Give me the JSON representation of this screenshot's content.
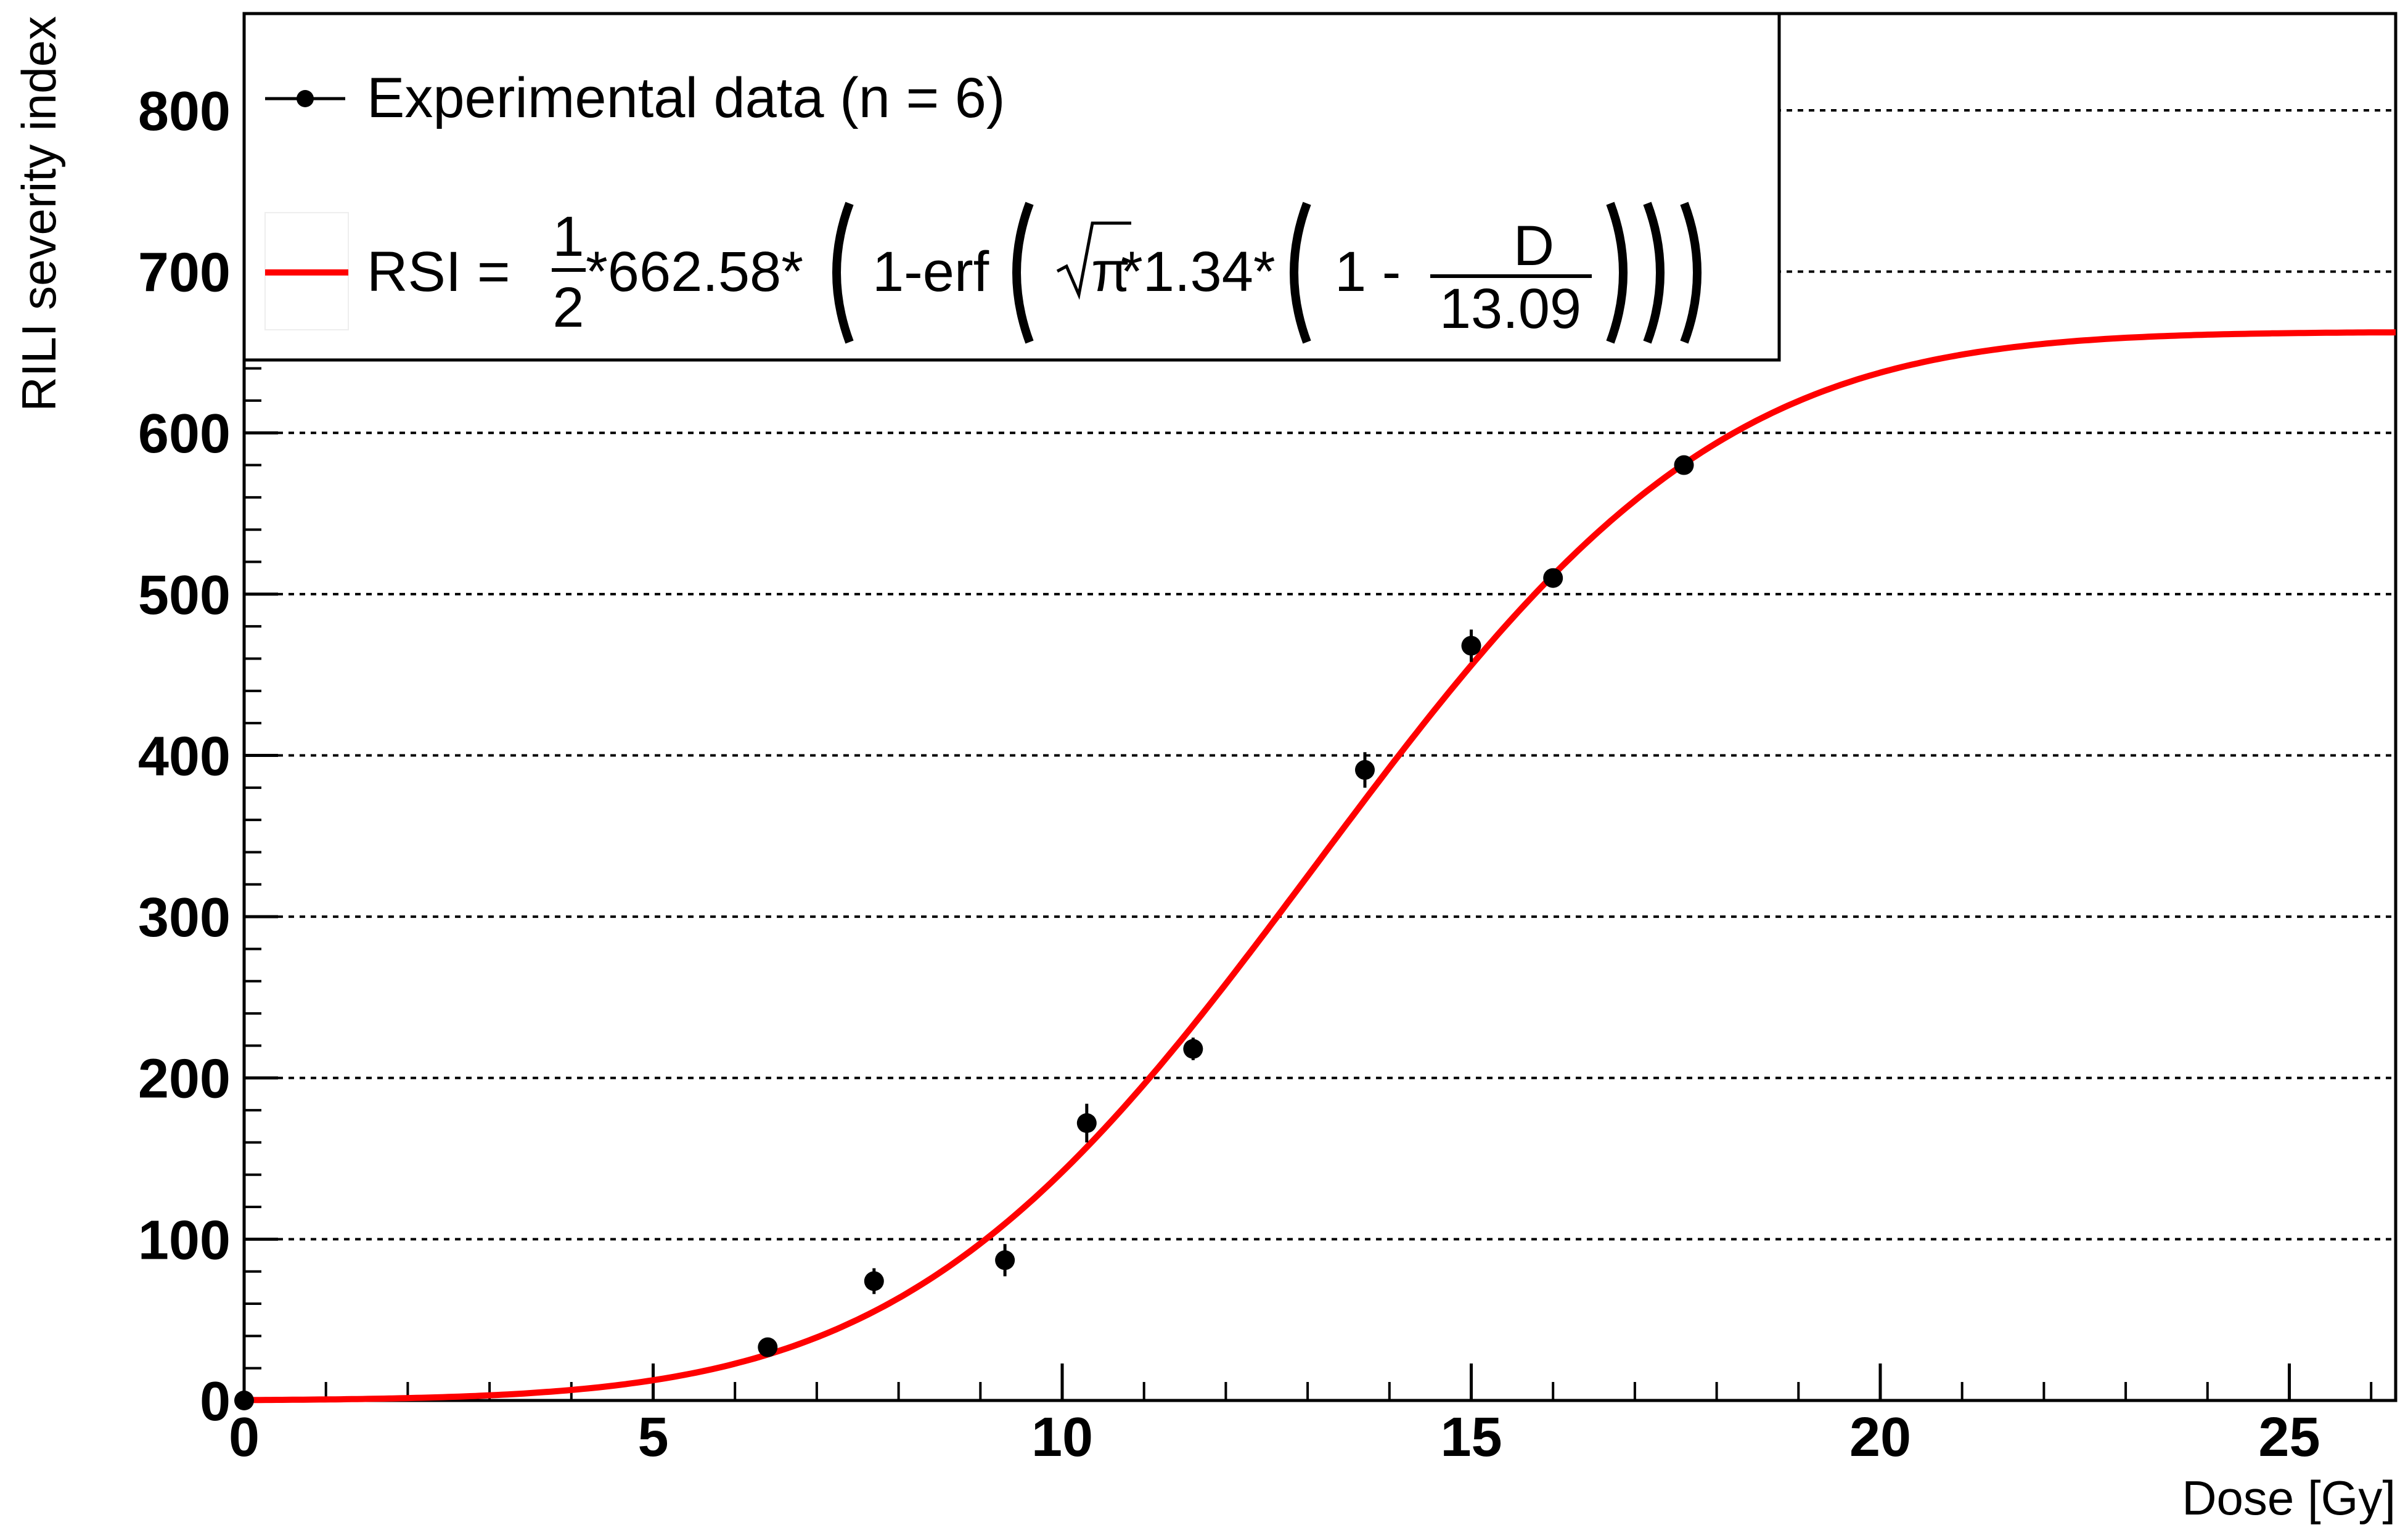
{
  "chart_data": {
    "type": "scatter",
    "title": "",
    "xlabel": "Dose [Gy]",
    "ylabel": "RILI severity index",
    "xlim": [
      0,
      26.3
    ],
    "ylim": [
      0,
      860
    ],
    "x_ticks": [
      "0",
      "5",
      "10",
      "15",
      "20",
      "25"
    ],
    "y_ticks": [
      "0",
      "100",
      "200",
      "300",
      "400",
      "500",
      "600",
      "700",
      "800"
    ],
    "y_grid": "dotted",
    "legend_position": "top-left",
    "series": [
      {
        "name": "Experimental data (n = 6)",
        "kind": "points-with-errors",
        "color": "#000000",
        "points": [
          {
            "x": 0,
            "y": 0,
            "err": 0
          },
          {
            "x": 6.4,
            "y": 33,
            "err": 3
          },
          {
            "x": 7.7,
            "y": 74,
            "err": 8
          },
          {
            "x": 9.3,
            "y": 87,
            "err": 10
          },
          {
            "x": 10.3,
            "y": 172,
            "err": 12
          },
          {
            "x": 11.6,
            "y": 218,
            "err": 7
          },
          {
            "x": 13.7,
            "y": 391,
            "err": 11
          },
          {
            "x": 15.0,
            "y": 468,
            "err": 10
          },
          {
            "x": 16.0,
            "y": 510,
            "err": 6
          },
          {
            "x": 17.6,
            "y": 580,
            "err": 4
          }
        ]
      },
      {
        "name": "RSI fit",
        "kind": "line",
        "color": "#ff0000",
        "amplitude": 662.58,
        "slope": 1.34,
        "d50": 13.09
      }
    ],
    "legend": {
      "data_label": "Experimental data (n = 6)",
      "fit_prefix": "RSI = ",
      "frac_half_num": "1",
      "frac_half_den": "2",
      "amplitude_text": "*662.58*",
      "one_erf": "1-erf",
      "pi_symbol": "π",
      "slope_text": "*1.34*",
      "one_minus": "1 - ",
      "frac_num": "D",
      "frac_den": "13.09"
    }
  }
}
